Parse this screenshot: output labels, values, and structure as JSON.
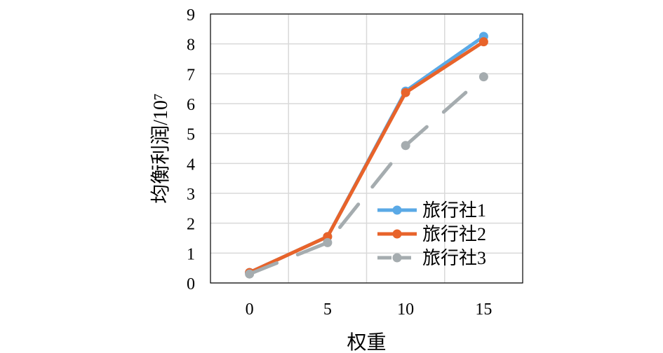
{
  "chart_data": {
    "type": "line",
    "title": "",
    "xlabel": "权重",
    "ylabel": "均衡利润/10⁷",
    "x": [
      0,
      5,
      10,
      15
    ],
    "xticks": [
      "0",
      "5",
      "10",
      "15"
    ],
    "yticks": [
      "0",
      "1",
      "2",
      "3",
      "4",
      "5",
      "6",
      "7",
      "8",
      "9"
    ],
    "xlim": [
      -2.5,
      17.5
    ],
    "ylim": [
      0,
      9
    ],
    "grid": true,
    "legend_position": "right-bottom",
    "series": [
      {
        "name": "旅行社1",
        "values": [
          0.35,
          1.55,
          6.42,
          8.25
        ],
        "color": "#5aa9e6",
        "dash": "solid"
      },
      {
        "name": "旅行社2",
        "values": [
          0.35,
          1.55,
          6.37,
          8.07
        ],
        "color": "#e8632a",
        "dash": "solid"
      },
      {
        "name": "旅行社3",
        "values": [
          0.3,
          1.35,
          4.6,
          6.9
        ],
        "color": "#a5acaf",
        "dash": "long-dash"
      }
    ]
  }
}
